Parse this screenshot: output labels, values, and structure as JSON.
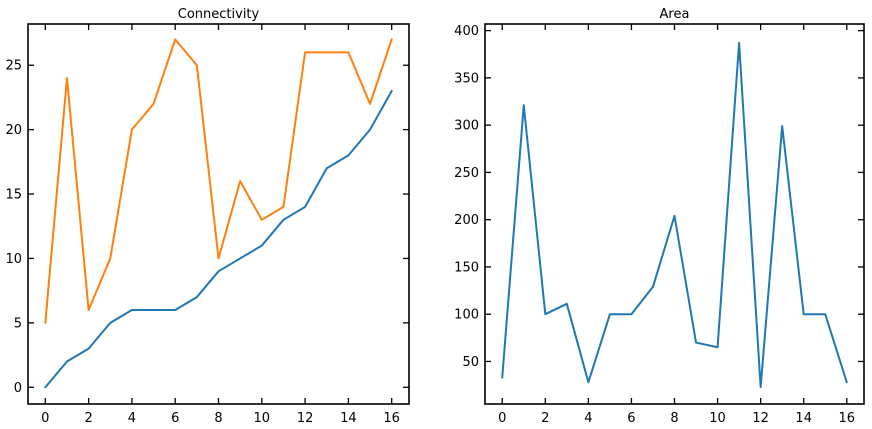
{
  "chart_data": [
    {
      "type": "line",
      "title": "Connectivity",
      "xlabel": "",
      "ylabel": "",
      "x": [
        0,
        1,
        2,
        3,
        4,
        5,
        6,
        7,
        8,
        9,
        10,
        11,
        12,
        13,
        14,
        15,
        16
      ],
      "xlim": [
        -0.8,
        16.8
      ],
      "ylim": [
        -1.3,
        28.2
      ],
      "xticks": [
        0,
        2,
        4,
        6,
        8,
        10,
        12,
        14,
        16
      ],
      "yticks": [
        0,
        5,
        10,
        15,
        20,
        25
      ],
      "grid": false,
      "legend": "none",
      "series": [
        {
          "color": "#1f77b4",
          "values": [
            0,
            2,
            3,
            5,
            6,
            6,
            6,
            7,
            9,
            10,
            11,
            13,
            14,
            17,
            18,
            20,
            23
          ]
        },
        {
          "color": "#ff7f0e",
          "values": [
            5,
            24,
            6,
            10,
            20,
            22,
            27,
            25,
            10,
            16,
            13,
            14,
            26,
            26,
            26,
            22,
            27
          ]
        }
      ]
    },
    {
      "type": "line",
      "title": "Area",
      "xlabel": "",
      "ylabel": "",
      "x": [
        0,
        1,
        2,
        3,
        4,
        5,
        6,
        7,
        8,
        9,
        10,
        11,
        12,
        13,
        14,
        15,
        16
      ],
      "xlim": [
        -0.8,
        16.8
      ],
      "ylim": [
        5,
        407
      ],
      "xticks": [
        0,
        2,
        4,
        6,
        8,
        10,
        12,
        14,
        16
      ],
      "yticks": [
        50,
        100,
        150,
        200,
        250,
        300,
        350,
        400
      ],
      "grid": false,
      "legend": "none",
      "series": [
        {
          "color": "#1f77b4",
          "values": [
            33,
            321,
            100,
            111,
            28,
            100,
            100,
            129,
            204,
            70,
            65,
            387,
            23,
            299,
            100,
            100,
            28
          ]
        }
      ]
    }
  ]
}
